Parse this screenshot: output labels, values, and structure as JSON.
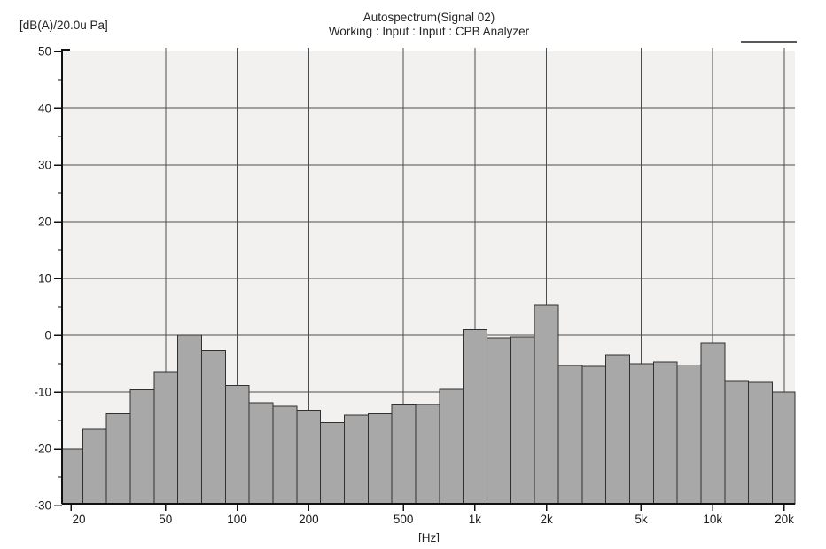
{
  "header": {
    "unit_label": "[dB(A)/20.0u Pa]",
    "title": "Autospectrum(Signal 02)",
    "subtitle": "Working : Input : Input : CPB Analyzer",
    "legend_marker": "horizontal-line"
  },
  "colors": {
    "page_bg": "#ffffff",
    "plot_bg": "#f2f1ef",
    "bar_fill": "#a8a8a8",
    "bar_border": "#303030",
    "grid": "#4d4d4d",
    "axis": "#111111",
    "text": "#1a1a1a",
    "legend_line": "#5a5a5a"
  },
  "chart_data": {
    "type": "bar",
    "subtype": "third-octave-spectrum",
    "title": "Autospectrum(Signal 02)",
    "subtitle": "Working : Input : Input : CPB Analyzer",
    "ylabel": "[dB(A)/20.0u Pa]",
    "xlabel": "[Hz]",
    "x_scale": "log",
    "grid": true,
    "ylim": [
      -30,
      50
    ],
    "ytick_step": 10,
    "ytick_minor_step": 5,
    "yticks": [
      50,
      40,
      30,
      20,
      10,
      0,
      -10,
      -20,
      -30
    ],
    "categories": [
      20,
      25,
      31.5,
      40,
      50,
      63,
      80,
      100,
      125,
      160,
      200,
      250,
      315,
      400,
      500,
      630,
      800,
      1000,
      1250,
      1600,
      2000,
      2500,
      3150,
      4000,
      5000,
      6300,
      8000,
      10000,
      12500,
      16000,
      20000
    ],
    "values": [
      -20.0,
      -16.6,
      -13.8,
      -9.6,
      -6.4,
      0.0,
      -2.7,
      -8.8,
      -11.9,
      -12.5,
      -13.2,
      -15.4,
      -14.1,
      -13.8,
      -12.3,
      -12.2,
      -9.5,
      1.0,
      -0.5,
      -0.3,
      5.3,
      -5.3,
      -5.5,
      -3.4,
      -5.0,
      -4.7,
      -5.2,
      -1.4,
      -8.1,
      -8.3,
      -10.0
    ],
    "xtick_values": [
      20,
      50,
      100,
      200,
      500,
      1000,
      2000,
      5000,
      10000,
      20000
    ],
    "xtick_labels": [
      "20",
      "50",
      "100",
      "200",
      "500",
      "1k",
      "2k",
      "5k",
      "10k",
      "20k"
    ],
    "gridline_x_values": [
      50,
      100,
      200,
      500,
      1000,
      2000,
      5000,
      10000,
      20000
    ],
    "legend_position": "top-right"
  }
}
